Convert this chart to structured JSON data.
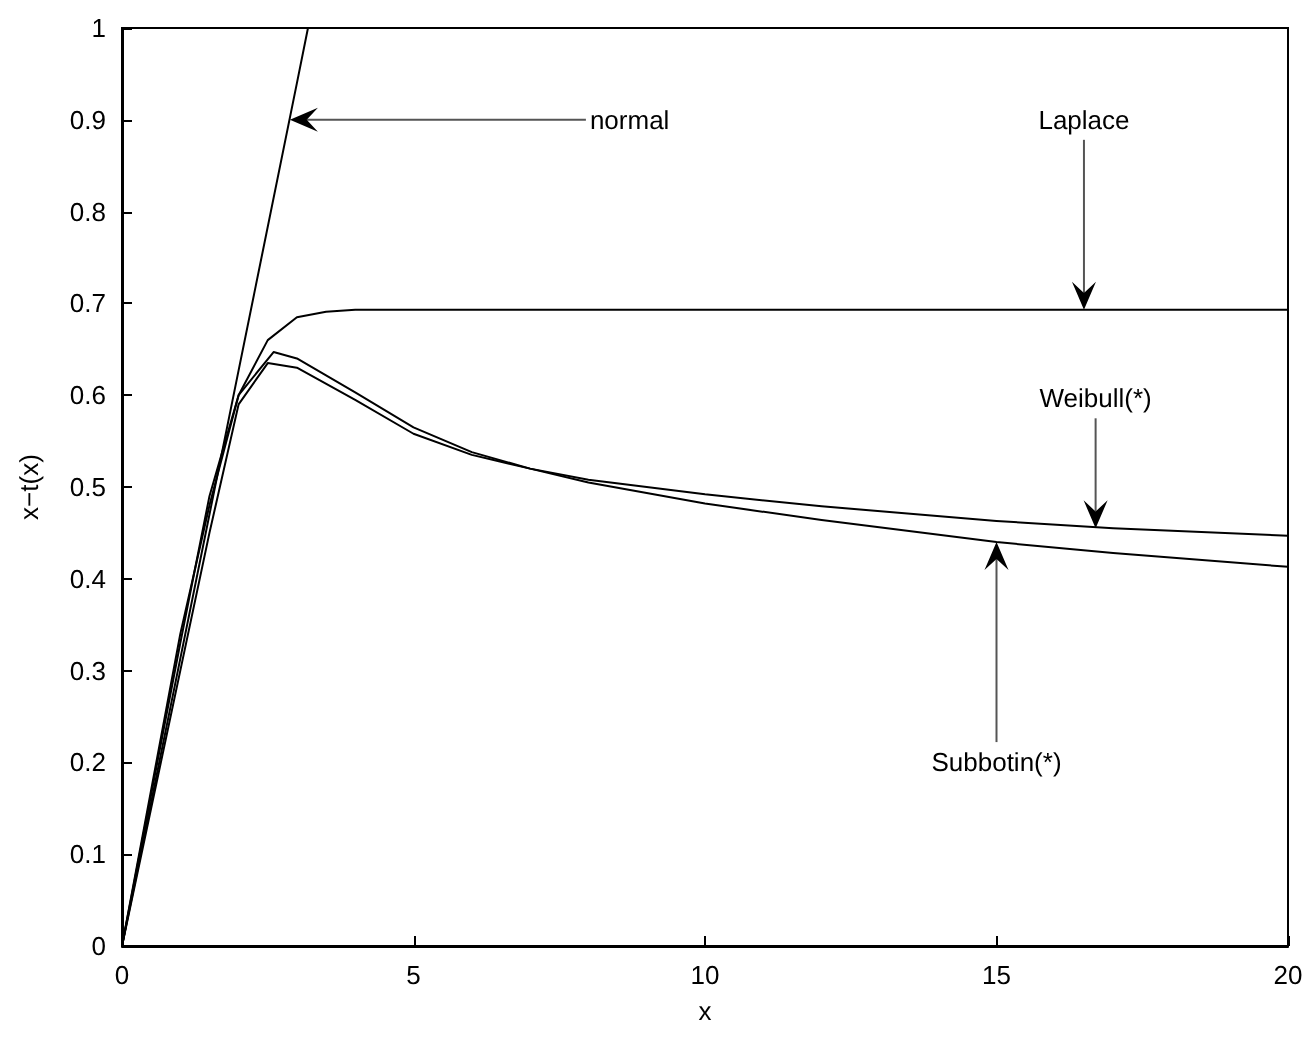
{
  "chart_data": {
    "type": "line",
    "xlabel": "x",
    "ylabel": "x−t(x)",
    "xlim": [
      0,
      20
    ],
    "ylim": [
      0,
      1
    ],
    "xticks": [
      0,
      5,
      10,
      15,
      20
    ],
    "yticks": [
      0,
      0.1,
      0.2,
      0.3,
      0.4,
      0.5,
      0.6,
      0.7,
      0.8,
      0.9,
      1
    ],
    "grid": false,
    "marker": "none",
    "line_style": "solid",
    "series": [
      {
        "color": "#000000",
        "x": [
          0,
          1,
          2,
          3,
          3.19
        ],
        "values": [
          0,
          0.313,
          0.627,
          0.94,
          1
        ]
      },
      {
        "color": "#000000",
        "x": [
          0,
          0.5,
          1,
          1.5,
          2,
          2.5,
          3,
          3.5,
          4,
          5,
          20
        ],
        "values": [
          0,
          0.17,
          0.34,
          0.48,
          0.6,
          0.66,
          0.685,
          0.691,
          0.693,
          0.693,
          0.693
        ]
      },
      {
        "color": "#000000",
        "x": [
          0,
          0.5,
          1,
          1.5,
          2,
          2.5,
          3,
          4,
          5,
          6,
          7,
          8,
          10,
          12,
          15,
          17,
          20
        ],
        "values": [
          0,
          0.15,
          0.3,
          0.45,
          0.59,
          0.635,
          0.63,
          0.595,
          0.558,
          0.535,
          0.52,
          0.508,
          0.492,
          0.479,
          0.463,
          0.455,
          0.447
        ]
      },
      {
        "color": "#000000",
        "x": [
          0,
          0.5,
          1,
          1.5,
          2,
          2.6,
          3,
          4,
          5,
          6,
          7,
          8,
          10,
          12,
          15,
          17,
          20
        ],
        "values": [
          0,
          0.165,
          0.33,
          0.49,
          0.6,
          0.647,
          0.64,
          0.603,
          0.565,
          0.538,
          0.52,
          0.505,
          0.482,
          0.464,
          0.44,
          0.428,
          0.413
        ]
      }
    ],
    "annotations": [
      {
        "text": "normal",
        "x": 2.88,
        "y": 0.9
      },
      {
        "text": "Laplace",
        "x": 16.5,
        "y": 0.693
      },
      {
        "text": "Weibull(*)",
        "x": 16.7,
        "y": 0.455
      },
      {
        "text": "Subbotin(*)",
        "x": 15,
        "y": 0.44
      }
    ]
  }
}
